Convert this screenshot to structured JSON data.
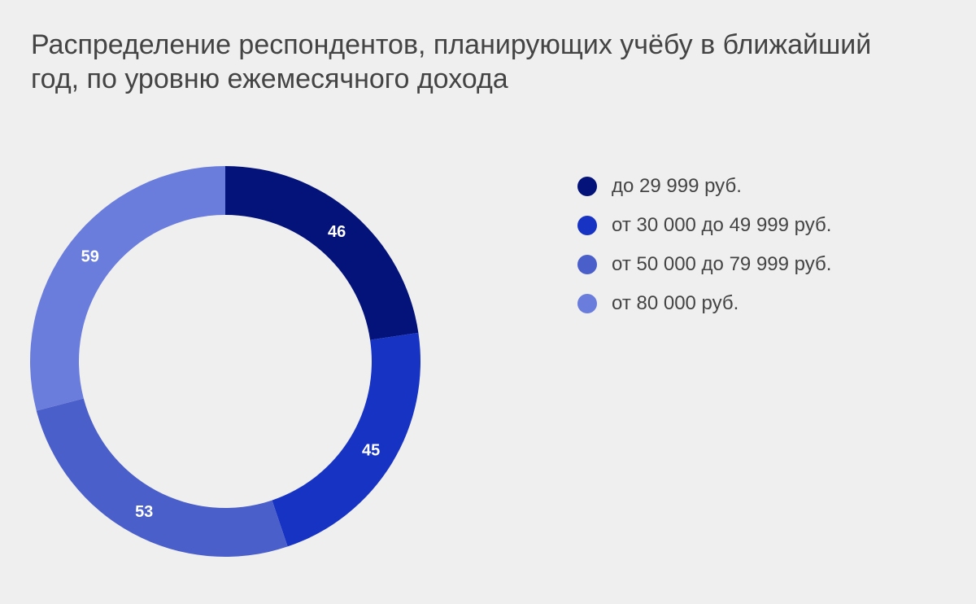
{
  "chart_data": {
    "type": "pie",
    "title": "Распределение респондентов, планирующих учёбу в ближайший год, по уровню ежемесячного дохода",
    "categories": [
      "до 29 999 руб.",
      "от 30 000 до 49 999 руб.",
      "от 50 000 до 79 999 руб.",
      "от 80 000 руб."
    ],
    "values": [
      46,
      45,
      53,
      59
    ],
    "data_labels": [
      "46",
      "45",
      "53",
      "59"
    ],
    "colors": [
      "#041379",
      "#1733c3",
      "#4a5fca",
      "#6a7ddc"
    ],
    "donut": true,
    "legend": "right",
    "grid": false
  }
}
